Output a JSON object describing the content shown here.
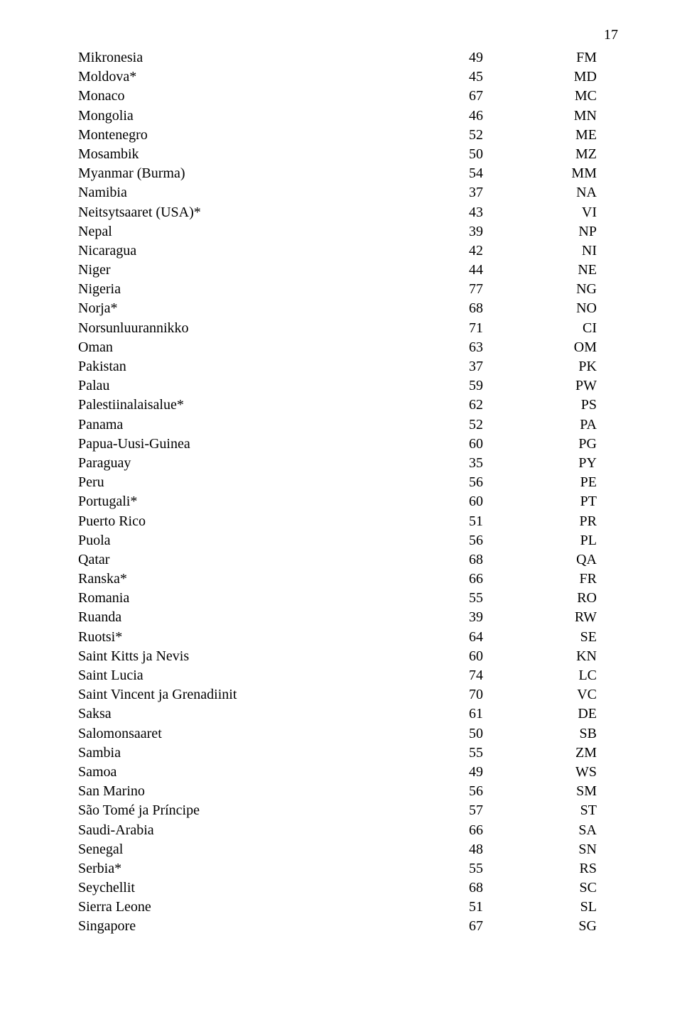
{
  "page_number": "17",
  "rows": [
    {
      "name": "Mikronesia",
      "value": "49",
      "code": "FM"
    },
    {
      "name": "Moldova*",
      "value": "45",
      "code": "MD"
    },
    {
      "name": "Monaco",
      "value": "67",
      "code": "MC"
    },
    {
      "name": "Mongolia",
      "value": "46",
      "code": "MN"
    },
    {
      "name": "Montenegro",
      "value": "52",
      "code": "ME"
    },
    {
      "name": "Mosambik",
      "value": "50",
      "code": "MZ"
    },
    {
      "name": "Myanmar (Burma)",
      "value": "54",
      "code": "MM"
    },
    {
      "name": "Namibia",
      "value": "37",
      "code": "NA"
    },
    {
      "name": "Neitsytsaaret (USA)*",
      "value": "43",
      "code": "VI"
    },
    {
      "name": "Nepal",
      "value": "39",
      "code": "NP"
    },
    {
      "name": "Nicaragua",
      "value": "42",
      "code": "NI"
    },
    {
      "name": "Niger",
      "value": "44",
      "code": "NE"
    },
    {
      "name": "Nigeria",
      "value": "77",
      "code": "NG"
    },
    {
      "name": "Norja*",
      "value": "68",
      "code": "NO"
    },
    {
      "name": "Norsunluurannikko",
      "value": "71",
      "code": "CI"
    },
    {
      "name": "Oman",
      "value": "63",
      "code": "OM"
    },
    {
      "name": "Pakistan",
      "value": "37",
      "code": "PK"
    },
    {
      "name": "Palau",
      "value": "59",
      "code": "PW"
    },
    {
      "name": "Palestiinalaisalue*",
      "value": "62",
      "code": "PS"
    },
    {
      "name": "Panama",
      "value": "52",
      "code": "PA"
    },
    {
      "name": "Papua-Uusi-Guinea",
      "value": "60",
      "code": "PG"
    },
    {
      "name": "Paraguay",
      "value": "35",
      "code": "PY"
    },
    {
      "name": "Peru",
      "value": "56",
      "code": "PE"
    },
    {
      "name": "Portugali*",
      "value": "60",
      "code": "PT"
    },
    {
      "name": "Puerto Rico",
      "value": "51",
      "code": "PR"
    },
    {
      "name": "Puola",
      "value": "56",
      "code": "PL"
    },
    {
      "name": "Qatar",
      "value": "68",
      "code": "QA"
    },
    {
      "name": "Ranska*",
      "value": "66",
      "code": "FR"
    },
    {
      "name": "Romania",
      "value": "55",
      "code": "RO"
    },
    {
      "name": "Ruanda",
      "value": "39",
      "code": "RW"
    },
    {
      "name": "Ruotsi*",
      "value": "64",
      "code": "SE"
    },
    {
      "name": "Saint Kitts ja Nevis",
      "value": "60",
      "code": "KN"
    },
    {
      "name": "Saint Lucia",
      "value": "74",
      "code": "LC"
    },
    {
      "name": "Saint Vincent ja Grenadiinit",
      "value": "70",
      "code": "VC"
    },
    {
      "name": "Saksa",
      "value": "61",
      "code": "DE"
    },
    {
      "name": "Salomonsaaret",
      "value": "50",
      "code": "SB"
    },
    {
      "name": "Sambia",
      "value": "55",
      "code": "ZM"
    },
    {
      "name": "Samoa",
      "value": "49",
      "code": "WS"
    },
    {
      "name": "San Marino",
      "value": "56",
      "code": "SM"
    },
    {
      "name": "São Tomé ja Príncipe",
      "value": "57",
      "code": "ST"
    },
    {
      "name": "Saudi-Arabia",
      "value": "66",
      "code": "SA"
    },
    {
      "name": "Senegal",
      "value": "48",
      "code": "SN"
    },
    {
      "name": "Serbia*",
      "value": "55",
      "code": "RS"
    },
    {
      "name": "Seychellit",
      "value": "68",
      "code": "SC"
    },
    {
      "name": "Sierra Leone",
      "value": "51",
      "code": "SL"
    },
    {
      "name": "Singapore",
      "value": "67",
      "code": "SG"
    }
  ]
}
